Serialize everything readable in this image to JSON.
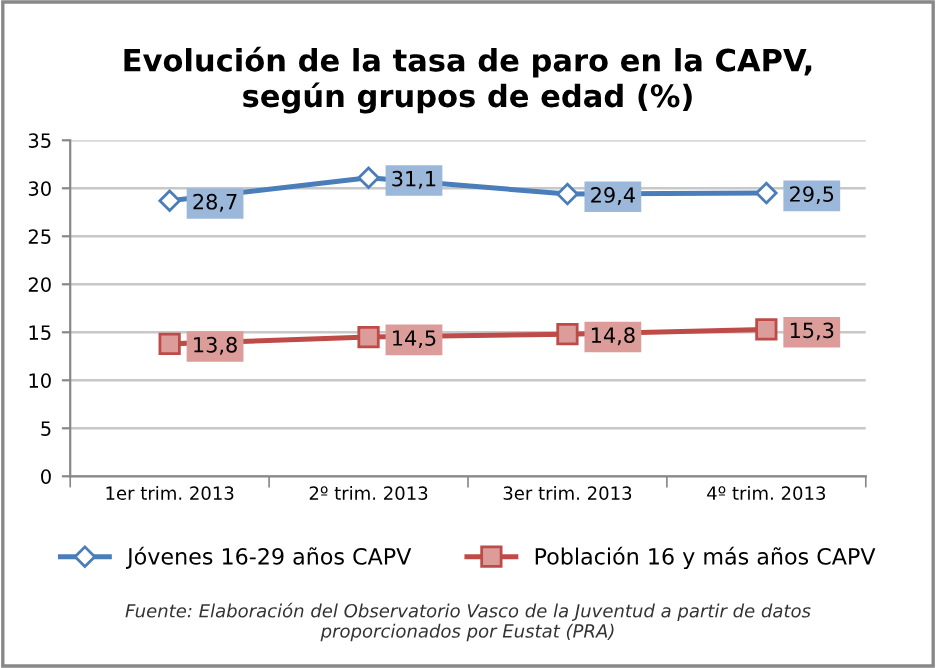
{
  "chart_data": {
    "type": "line",
    "title": "Evolución de la tasa de paro en la CAPV,\nsegún grupos de edad (%)",
    "categories": [
      "1er trim. 2013",
      "2º trim. 2013",
      "3er trim. 2013",
      "4º trim. 2013"
    ],
    "series": [
      {
        "name": "Jóvenes 16-29 años CAPV",
        "color": "#4a7ebb",
        "marker": "diamond",
        "values": [
          28.7,
          31.1,
          29.4,
          29.5
        ],
        "value_labels": [
          "28,7",
          "31,1",
          "29,4",
          "29,5"
        ]
      },
      {
        "name": "Población 16 y más años CAPV",
        "color": "#be4b48",
        "marker": "square",
        "values": [
          13.8,
          14.5,
          14.8,
          15.3
        ],
        "value_labels": [
          "13,8",
          "14,5",
          "14,8",
          "15,3"
        ]
      }
    ],
    "ylim": [
      0,
      35
    ],
    "yticks": [
      0,
      5,
      10,
      15,
      20,
      25,
      30,
      35
    ],
    "grid": "y",
    "legend": "bottom",
    "annotations": [
      "Fuente: Elaboración del Observatorio Vasco de la Juventud a partir de datos\nproporcionados por Eustat (PRA)"
    ]
  }
}
